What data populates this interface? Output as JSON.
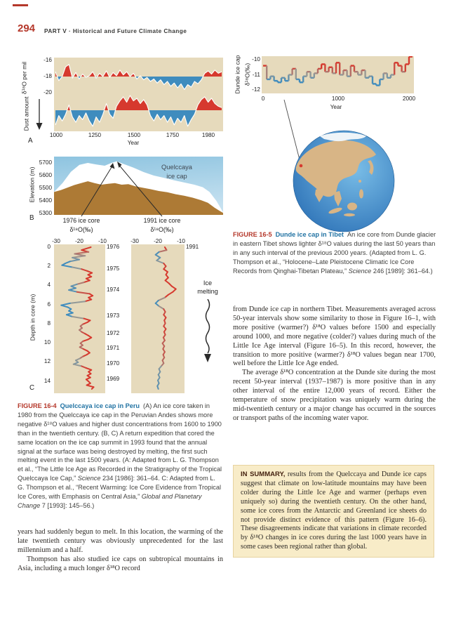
{
  "page": {
    "number": "294",
    "part": "PART V",
    "separator": "·",
    "title": "Historical and Future Climate Change"
  },
  "colors": {
    "accent_red": "#b5382b",
    "caption_teal": "#2273a3",
    "panel_beige": "#e6dabc",
    "series_red": "#d6392e",
    "series_blue": "#3f8cbe",
    "neutral_gray": "#9a9a94",
    "sky_top": "#8ec4e0",
    "sky_bottom": "#c6e1f0",
    "ice_white": "#ffffff",
    "rock_brown": "#ad7a35",
    "ocean_light": "#79bde7",
    "ocean_dark": "#2a6fb5",
    "land_tan": "#d8b586",
    "polar_white": "#eef4f8",
    "summary_bg": "#f8ecc8",
    "summary_border": "#e7d3a0",
    "summary_lead": "#44210f",
    "ink": "#2e2a26",
    "arrow_dark": "#2a2a2a"
  },
  "figure_a": {
    "panel_label": "A"
  },
  "figure_b": {
    "panel_label": "B",
    "ylabel": "Elevation (m)",
    "annotation_line1": "Quelccaya",
    "annotation_line2": "ice cap",
    "core1976_title": "1976 ice core",
    "core1976_subtitle": "δ¹⁸O(‰)",
    "core1991_title": "1991 ice core",
    "core1991_subtitle": "δ¹⁸O(‰)"
  },
  "figure_c": {
    "panel_label": "C",
    "ice_melting_line1": "Ice",
    "ice_melting_line2": "melting"
  },
  "captions": {
    "fig16_4": {
      "tag": "FIGURE 16-4",
      "title": "Quelccaya ice cap in Peru",
      "segments": [
        {
          "text": "(A) An ice core taken in 1980 from the Quelccaya ice cap in the Peruvian Andes shows more negative δ¹⁸O values and higher dust concentrations from 1600 to 1900 than in the twentieth century. (B, C) A return expedition that cored the same location on the ice cap summit in 1993 found that the annual signal at the surface was being destroyed by melting, the first such melting event in the last 1500 years. (A: Adapted from L. G. Thompson et al., “The Little Ice Age as Recorded in the Stratigraphy of the Tropical Quelccaya Ice Cap,” ",
          "italic": false
        },
        {
          "text": "Science",
          "italic": true
        },
        {
          "text": " 234 [1986]: 361–64. C: Adapted from L. G. Thompson et al., “Recent Warming: Ice Core Evidence from Tropical Ice Cores, with Emphasis on Central Asia,” ",
          "italic": false
        },
        {
          "text": "Global and Planetary Change",
          "italic": true
        },
        {
          "text": " 7 [1993]: 145–56.)",
          "italic": false
        }
      ]
    },
    "fig16_5": {
      "tag": "FIGURE 16-5",
      "title": "Dunde ice cap in Tibet",
      "segments": [
        {
          "text": "An ice core from Dunde glacier in eastern Tibet shows lighter δ¹⁸O values during the last 50 years than in any such interval of the previous 2000 years.  (Adapted from L. G. Thompson et al., “Holocene–Late Pleistocene Climatic Ice Core Records from Qinghai-Tibetan Plateau,” ",
          "italic": false
        },
        {
          "text": "Science",
          "italic": true
        },
        {
          "text": " 246 [1989]: 361–64.)",
          "italic": false
        }
      ]
    }
  },
  "body_left": {
    "p1": "years had suddenly begun to melt. In this location, the warming of the late twentieth century was obviously unprecedented for the last millennium and a half.",
    "p2": "Thompson has also studied ice caps on subtropical mountains in Asia, including a much longer δ¹⁸O record"
  },
  "body_right": {
    "p1": "from Dunde ice cap in northern Tibet. Measurements averaged across 50-year intervals show some similarity to those in Figure 16–1, with more positive (warmer?) δ¹⁸O values before 1500 and especially around 1000, and more negative (colder?) values during much of the Little Ice Age interval (Figure 16–5). In this record, however, the transition to more positive (warmer?) δ¹⁸O values began near 1700, well before the Little Ice Age ended.",
    "p2": "The average δ¹⁸O concentration at the Dunde site during the most recent 50-year interval (1937–1987) is more positive than in any other interval of the entire 12,000 years of record. Either the temperature of snow precipitation was uniquely warm during the mid-twentieth century or a major change has occurred in the sources or transport paths of the incoming water vapor."
  },
  "summary": {
    "lead": "IN SUMMARY,",
    "text": " results from the Quelccaya and Dunde ice caps suggest that climate on low-latitude mountains may have been colder during the Little Ice Age and warmer (perhaps even uniquely so) during the twentieth century. On the other hand, some ice cores from the Antarctic and Greenland ice sheets do not provide distinct evidence of this pattern (Figure 16–6). These disagreements indicate that variations in climate recorded by δ¹⁸O changes in ice cores during the last 1000 years have in some cases been regional rather than global."
  },
  "chart_data": {
    "quelccaya_d18o": {
      "type": "area",
      "ylabel": "δ¹⁸O per mil",
      "yticks": [
        "-16",
        "-18",
        "-20"
      ],
      "xlabel": "Year",
      "xticks": [
        "1000",
        "1250",
        "1500",
        "1750",
        "1980"
      ],
      "x_range": [
        1000,
        1980
      ],
      "baseline": -18,
      "ylim": [
        -20.6,
        -15.9
      ],
      "values": [
        -17.4,
        -18.5,
        -18,
        -16.8,
        -16.5,
        -18.2,
        -17.5,
        -18.3,
        -17.7,
        -18.1,
        -17.9,
        -17.4,
        -18.2,
        -17.6,
        -18,
        -17.3,
        -18.1,
        -17.5,
        -17.9,
        -17.2,
        -17.8,
        -17.4,
        -18,
        -17.6,
        -18.3,
        -17.9,
        -18.4,
        -18.1,
        -18.6,
        -18.3,
        -18.8,
        -18.4,
        -19,
        -18.6,
        -19.2,
        -18.8,
        -19.4,
        -18.9,
        -19.6,
        -19,
        -19.3,
        -18.6,
        -18.9,
        -18.4,
        -17.6,
        -17.3,
        -17.7,
        -17.2,
        -17.6,
        -17.4
      ]
    },
    "quelccaya_dust": {
      "type": "area",
      "ylabel": "Dust amount",
      "baseline": 0,
      "x_range": [
        1000,
        1980
      ],
      "values": [
        -1.1,
        -0.4,
        -0.8,
        -0.3,
        0.4,
        -0.5,
        -0.9,
        -0.4,
        -0.7,
        -0.2,
        -0.8,
        -1.2,
        -0.5,
        -0.9,
        -0.3,
        0.5,
        -0.3,
        -0.6,
        0.3,
        0.7,
        1,
        0.6,
        1.1,
        0.7,
        0.9,
        0.5,
        0.8,
        0.4,
        -0.4,
        -0.8,
        -0.3,
        -0.7,
        -0.4,
        -0.9,
        -0.5,
        -1.1,
        -0.6,
        -0.9,
        -0.4,
        -1.2,
        -0.7,
        -0.3,
        0.4,
        0.8,
        1,
        0.6,
        0.9,
        0.5,
        0.3,
        0.2
      ]
    },
    "quelccaya_profile": {
      "type": "area",
      "ylabel": "Elevation (m)",
      "yticks": [
        "5700",
        "5600",
        "5500",
        "5400",
        "5300"
      ],
      "ylim": [
        5300,
        5712
      ],
      "annotation": "Quelccaya ice cap",
      "summit": [
        37,
        5712
      ],
      "ice_surface": [
        [
          0,
          5470
        ],
        [
          5,
          5540
        ],
        [
          10,
          5630
        ],
        [
          15,
          5685
        ],
        [
          20,
          5700
        ],
        [
          25,
          5688
        ],
        [
          30,
          5678
        ],
        [
          34,
          5700
        ],
        [
          37,
          5712
        ],
        [
          41,
          5692
        ],
        [
          47,
          5662
        ],
        [
          53,
          5628
        ],
        [
          59,
          5600
        ],
        [
          65,
          5582
        ],
        [
          71,
          5562
        ],
        [
          77,
          5545
        ],
        [
          83,
          5528
        ],
        [
          88,
          5508
        ],
        [
          92,
          5470
        ],
        [
          96,
          5400
        ],
        [
          100,
          5310
        ]
      ],
      "rock_surface": [
        [
          0,
          5470
        ],
        [
          4,
          5485
        ],
        [
          8,
          5505
        ],
        [
          12,
          5525
        ],
        [
          16,
          5540
        ],
        [
          20,
          5555
        ],
        [
          24,
          5540
        ],
        [
          28,
          5528
        ],
        [
          32,
          5535
        ],
        [
          36,
          5540
        ],
        [
          40,
          5528
        ],
        [
          44,
          5532
        ],
        [
          48,
          5515
        ],
        [
          52,
          5505
        ],
        [
          57,
          5492
        ],
        [
          62,
          5478
        ],
        [
          67,
          5468
        ],
        [
          72,
          5452
        ],
        [
          77,
          5440
        ],
        [
          82,
          5425
        ],
        [
          87,
          5405
        ],
        [
          91,
          5385
        ],
        [
          95,
          5345
        ],
        [
          98,
          5320
        ],
        [
          100,
          5305
        ]
      ]
    },
    "core_1976": {
      "type": "line",
      "top_label": "1976",
      "xticks": [
        "-30",
        "-20",
        "-10"
      ],
      "xlim": [
        -30,
        -10
      ],
      "ylabel": "Depth in core (m)",
      "depth_ticks": [
        "0",
        "2",
        "4",
        "6",
        "8",
        "10",
        "12",
        "14"
      ],
      "year_labels": [
        "1976",
        "1975",
        "1974",
        "1973",
        "1972",
        "1971",
        "1970",
        "1969"
      ],
      "points": [
        [
          0,
          -15
        ],
        [
          0.3,
          -19
        ],
        [
          0.5,
          -16
        ],
        [
          0.7,
          -22
        ],
        [
          0.9,
          -17.5
        ],
        [
          1.1,
          -23
        ],
        [
          1.3,
          -20
        ],
        [
          1.5,
          -24
        ],
        [
          1.7,
          -26
        ],
        [
          1.9,
          -27.5
        ],
        [
          2.1,
          -23
        ],
        [
          2.3,
          -19
        ],
        [
          2.5,
          -16.5
        ],
        [
          2.7,
          -14.5
        ],
        [
          2.9,
          -16.2
        ],
        [
          3.1,
          -14.8
        ],
        [
          3.3,
          -17
        ],
        [
          3.5,
          -15.5
        ],
        [
          3.7,
          -18
        ],
        [
          3.9,
          -21
        ],
        [
          4.1,
          -23.5
        ],
        [
          4.3,
          -21.5
        ],
        [
          4.5,
          -24.5
        ],
        [
          4.7,
          -21
        ],
        [
          4.9,
          -15.5
        ],
        [
          5.1,
          -14.2
        ],
        [
          5.3,
          -16
        ],
        [
          5.5,
          -14.8
        ],
        [
          5.7,
          -17.5
        ],
        [
          5.9,
          -24
        ],
        [
          6.1,
          -27.8
        ],
        [
          6.3,
          -25
        ],
        [
          6.5,
          -23.5
        ],
        [
          6.7,
          -24.5
        ],
        [
          6.9,
          -22.8
        ],
        [
          7.1,
          -25.5
        ],
        [
          7.3,
          -23
        ],
        [
          7.5,
          -18
        ],
        [
          7.7,
          -15.3
        ],
        [
          7.9,
          -16.5
        ],
        [
          8.1,
          -18.5
        ],
        [
          8.3,
          -19.5
        ],
        [
          8.5,
          -18.8
        ],
        [
          8.7,
          -20
        ],
        [
          8.9,
          -19
        ],
        [
          9.1,
          -17.5
        ],
        [
          9.3,
          -16
        ],
        [
          9.5,
          -14.8
        ],
        [
          9.7,
          -16.2
        ],
        [
          9.9,
          -18.5
        ],
        [
          10.1,
          -19.5
        ],
        [
          10.3,
          -18.5
        ],
        [
          10.5,
          -19.8
        ],
        [
          10.7,
          -18.2
        ],
        [
          10.9,
          -16.5
        ],
        [
          11.1,
          -15.5
        ],
        [
          11.3,
          -16.8
        ],
        [
          11.5,
          -18.5
        ],
        [
          11.7,
          -19.8
        ],
        [
          11.9,
          -21.5
        ],
        [
          12.1,
          -20.5
        ],
        [
          12.3,
          -22.5
        ],
        [
          12.5,
          -19
        ],
        [
          12.7,
          -17
        ],
        [
          12.9,
          -14.8
        ],
        [
          13.1,
          -16
        ],
        [
          13.3,
          -15
        ],
        [
          13.5,
          -16.5
        ],
        [
          13.7,
          -15.2
        ],
        [
          13.9,
          -17
        ],
        [
          14.1,
          -16
        ],
        [
          14.3,
          -15.2
        ],
        [
          14.5,
          -16.8
        ],
        [
          14.7,
          -13.8
        ],
        [
          14.9,
          -14.6
        ]
      ]
    },
    "core_1991": {
      "type": "line",
      "top_label": "1991",
      "xticks": [
        "-30",
        "-20",
        "-10"
      ],
      "xlim": [
        -30,
        -10
      ],
      "points": [
        [
          0,
          -17
        ],
        [
          0.3,
          -16.2
        ],
        [
          0.5,
          -19.5
        ],
        [
          0.8,
          -21
        ],
        [
          1.1,
          -19
        ],
        [
          1.4,
          -20.5
        ],
        [
          1.7,
          -17.5
        ],
        [
          2,
          -16.5
        ],
        [
          2.3,
          -17.5
        ],
        [
          2.6,
          -15.8
        ],
        [
          2.9,
          -16.5
        ],
        [
          3.2,
          -15.5
        ],
        [
          3.5,
          -16.8
        ],
        [
          3.8,
          -15.2
        ],
        [
          4.1,
          -14
        ],
        [
          4.4,
          -12.2
        ],
        [
          4.7,
          -13.5
        ],
        [
          5,
          -15.5
        ],
        [
          5.3,
          -17
        ],
        [
          5.6,
          -19.8
        ],
        [
          5.9,
          -21
        ],
        [
          6.2,
          -19.5
        ],
        [
          6.5,
          -17.5
        ],
        [
          6.8,
          -16.8
        ],
        [
          7.1,
          -17.5
        ],
        [
          7.4,
          -16.5
        ],
        [
          7.7,
          -17.2
        ],
        [
          8,
          -16.8
        ],
        [
          8.3,
          -17.5
        ],
        [
          8.6,
          -16.5
        ],
        [
          8.9,
          -17.3
        ],
        [
          9.2,
          -16.8
        ],
        [
          9.5,
          -17.6
        ],
        [
          9.8,
          -17
        ],
        [
          10.1,
          -18
        ],
        [
          10.4,
          -17.2
        ],
        [
          10.7,
          -17.8
        ],
        [
          11,
          -17
        ],
        [
          11.3,
          -17.7
        ],
        [
          11.6,
          -17.2
        ],
        [
          11.9,
          -18
        ],
        [
          12.2,
          -17.5
        ],
        [
          12.5,
          -18.5
        ],
        [
          12.8,
          -19.5
        ],
        [
          13.1,
          -19
        ],
        [
          13.4,
          -19.8
        ],
        [
          13.7,
          -19.2
        ],
        [
          14,
          -20
        ],
        [
          14.3,
          -19.5
        ],
        [
          14.6,
          -20.2
        ],
        [
          14.9,
          -19.8
        ]
      ]
    },
    "dunde": {
      "type": "step",
      "ylabel_line1": "Dunde ice cap",
      "ylabel_line2": "δ¹⁸O(‰)",
      "yticks": [
        "-10",
        "-11",
        "-12"
      ],
      "xticks": [
        "0",
        "1000",
        "2000"
      ],
      "xlabel": "Year",
      "x_range": [
        0,
        2000
      ],
      "interval_years": 50,
      "ylim": [
        -12.2,
        -9.7
      ],
      "values": [
        -10.4,
        -11.3,
        -11.1,
        -11.4,
        -11.5,
        -11.2,
        -11.4,
        -11,
        -10.6,
        -11.3,
        -11.5,
        -11.1,
        -10.8,
        -11.2,
        -10.9,
        -10.6,
        -10.3,
        -10.8,
        -10.5,
        -10.9,
        -10.2,
        -11,
        -10.7,
        -11.1,
        -10.4,
        -10.8,
        -11,
        -10.7,
        -11.2,
        -11.1,
        -11.6,
        -11.7,
        -11.3,
        -10.9,
        -11.2,
        -11,
        -10.2,
        -10.4,
        -10.8,
        -10.3,
        -9.8
      ]
    }
  }
}
